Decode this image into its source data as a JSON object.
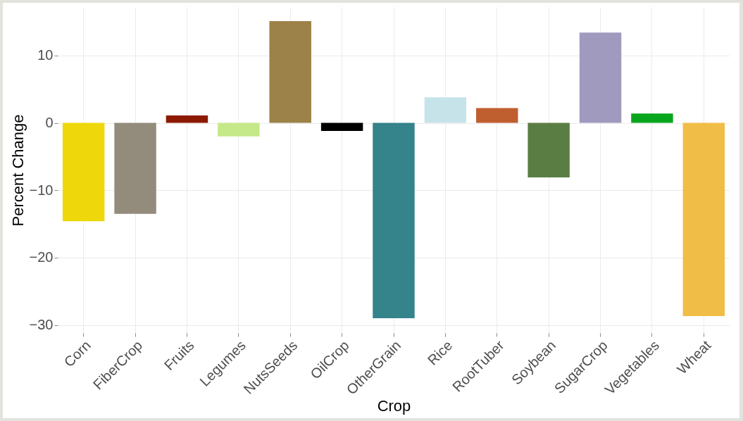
{
  "chart_data": {
    "type": "bar",
    "xlabel": "Crop",
    "ylabel": "Percent Change",
    "categories": [
      "Corn",
      "FiberCrop",
      "Fruits",
      "Legumes",
      "NutsSeeds",
      "OilCrop",
      "OtherGrain",
      "Rice",
      "RootTuber",
      "Soybean",
      "SugarCrop",
      "Vegetables",
      "Wheat"
    ],
    "values": [
      -14.6,
      -13.5,
      1.1,
      -2.0,
      15.1,
      -1.2,
      -29.0,
      3.8,
      2.2,
      -8.1,
      13.4,
      1.4,
      -28.7
    ],
    "colors": [
      "#eed80b",
      "#938c7c",
      "#8b1a00",
      "#c5e888",
      "#9c8148",
      "#000000",
      "#35838b",
      "#c6e3ea",
      "#bf5f30",
      "#5a7d44",
      "#a09abf",
      "#0aa51e",
      "#f0be46"
    ],
    "ylim": [
      -31.2,
      17.2
    ],
    "yticks": [
      -30,
      -20,
      -10,
      0,
      10
    ],
    "grid": true,
    "legend": false
  }
}
